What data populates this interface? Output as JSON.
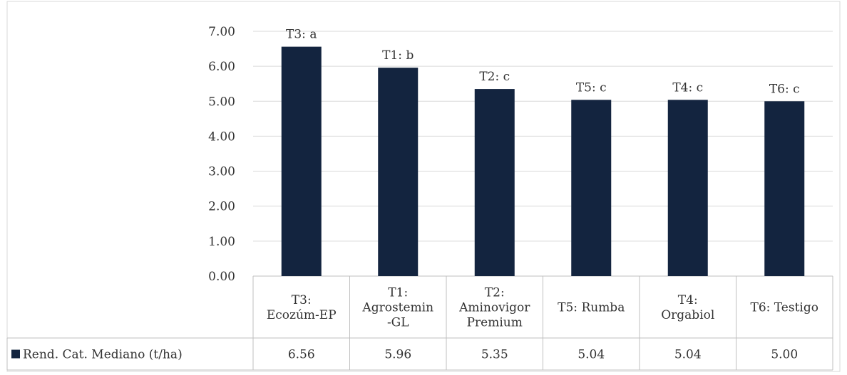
{
  "chart_data": {
    "type": "bar",
    "categories": [
      "T3:\nEcozúm-EP",
      "T1:\nAgrostemin\n-GL",
      "T2:\nAminovigor\nPremium",
      "T5: Rumba",
      "T4:\nOrgabiol",
      "T6: Testigo"
    ],
    "series": [
      {
        "name": "Rend. Cat. Mediano (t/ha)",
        "values": [
          6.56,
          5.96,
          5.35,
          5.04,
          5.04,
          5.0
        ],
        "value_labels": [
          "6.56",
          "5.96",
          "5.35",
          "5.04",
          "5.04",
          "5.00"
        ],
        "color": "#13243f"
      }
    ],
    "bar_labels": [
      "T3: a",
      "T1: b",
      "T2: c",
      "T5: c",
      "T4: c",
      "T6: c"
    ],
    "y_ticks": [
      "0.00",
      "1.00",
      "2.00",
      "3.00",
      "4.00",
      "5.00",
      "6.00",
      "7.00"
    ],
    "ylim": [
      0,
      7
    ],
    "grid": true,
    "data_table": true,
    "legend_position": "table-left"
  }
}
